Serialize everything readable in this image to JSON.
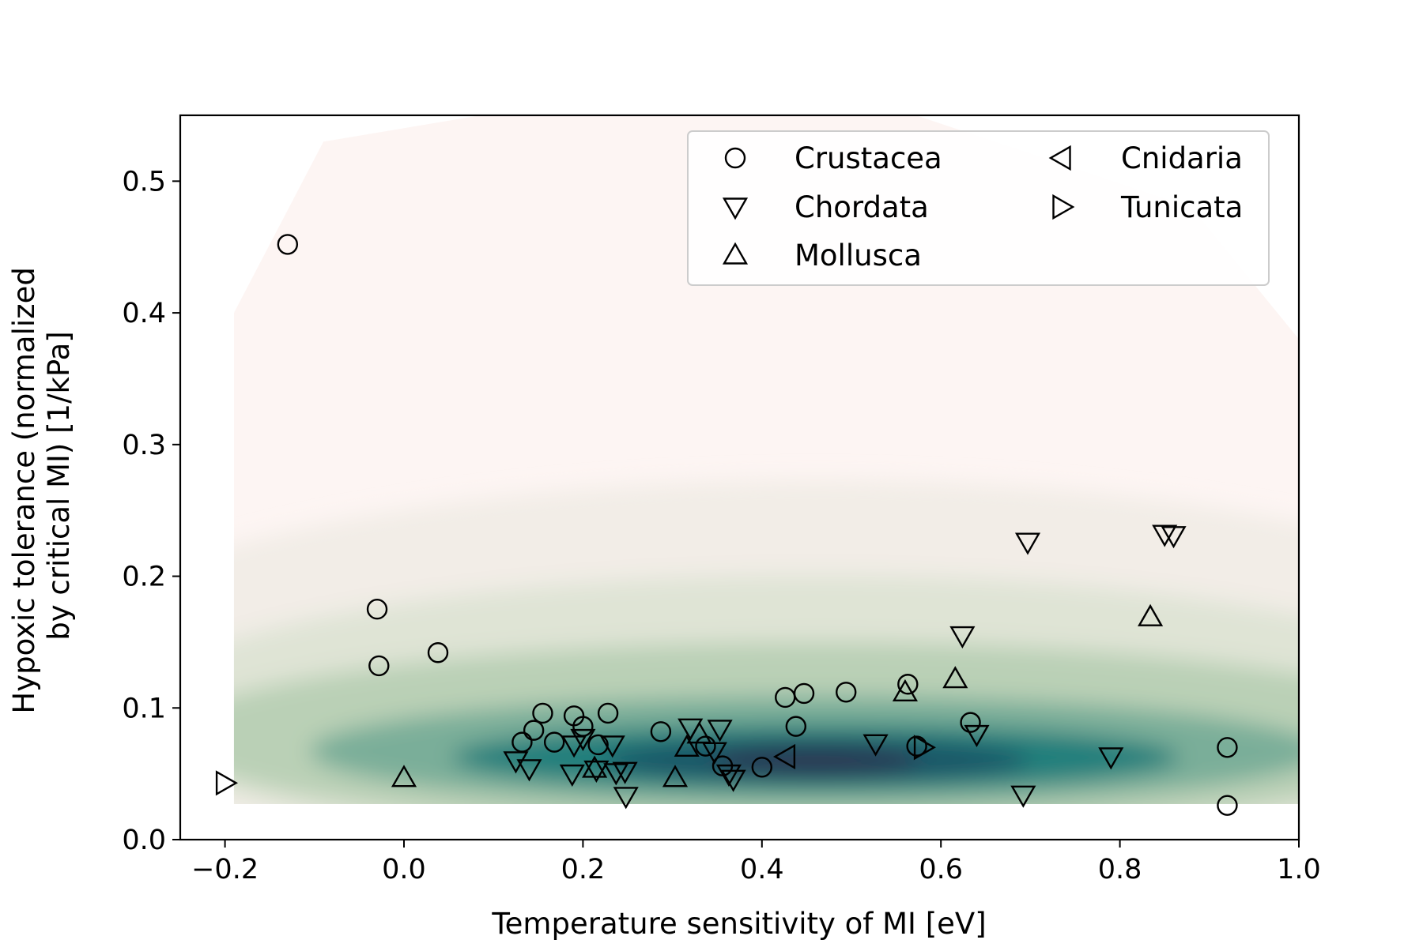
{
  "chart_data": {
    "type": "scatter",
    "title": "",
    "xlabel": "Temperature sensitivity of MI [eV]",
    "ylabel_lines": [
      "Hypoxic tolerance (normalized",
      "by critical MI) [1/kPa]"
    ],
    "xlim": [
      -0.25,
      1.0
    ],
    "ylim": [
      0.0,
      0.55
    ],
    "xticks": [
      -0.2,
      0.0,
      0.2,
      0.4,
      0.6,
      0.8,
      1.0
    ],
    "xtick_labels": [
      "−0.2",
      "0.0",
      "0.2",
      "0.4",
      "0.6",
      "0.8",
      "1.0"
    ],
    "yticks": [
      0.0,
      0.1,
      0.2,
      0.3,
      0.4,
      0.5
    ],
    "ytick_labels": [
      "0.0",
      "0.1",
      "0.2",
      "0.3",
      "0.4",
      "0.5"
    ],
    "grid": false,
    "legend_position": "top-right",
    "legend_columns": 2,
    "background": "kernel density estimate (green-blue center, fading to pale pink)",
    "density_colors": {
      "low": "#fdf5f3",
      "mid": "#b4ccb0",
      "high": "#1a7a78",
      "peak": "#2a3a55"
    },
    "series": [
      {
        "name": "Crustacea",
        "marker": "circle",
        "points": [
          [
            -0.13,
            0.452
          ],
          [
            -0.03,
            0.175
          ],
          [
            -0.028,
            0.132
          ],
          [
            0.038,
            0.142
          ],
          [
            0.132,
            0.074
          ],
          [
            0.145,
            0.083
          ],
          [
            0.155,
            0.096
          ],
          [
            0.168,
            0.074
          ],
          [
            0.19,
            0.094
          ],
          [
            0.2,
            0.086
          ],
          [
            0.217,
            0.072
          ],
          [
            0.228,
            0.096
          ],
          [
            0.287,
            0.082
          ],
          [
            0.337,
            0.071
          ],
          [
            0.356,
            0.056
          ],
          [
            0.4,
            0.055
          ],
          [
            0.426,
            0.108
          ],
          [
            0.438,
            0.086
          ],
          [
            0.447,
            0.111
          ],
          [
            0.494,
            0.112
          ],
          [
            0.563,
            0.118
          ],
          [
            0.573,
            0.071
          ],
          [
            0.633,
            0.089
          ],
          [
            0.92,
            0.07
          ],
          [
            0.92,
            0.026
          ]
        ]
      },
      {
        "name": "Chordata",
        "marker": "triangle-down",
        "points": [
          [
            0.125,
            0.06
          ],
          [
            0.14,
            0.054
          ],
          [
            0.188,
            0.05
          ],
          [
            0.19,
            0.072
          ],
          [
            0.2,
            0.077
          ],
          [
            0.215,
            0.053
          ],
          [
            0.233,
            0.072
          ],
          [
            0.237,
            0.051
          ],
          [
            0.247,
            0.052
          ],
          [
            0.248,
            0.033
          ],
          [
            0.32,
            0.085
          ],
          [
            0.347,
            0.067
          ],
          [
            0.353,
            0.084
          ],
          [
            0.363,
            0.05
          ],
          [
            0.368,
            0.046
          ],
          [
            0.527,
            0.073
          ],
          [
            0.624,
            0.155
          ],
          [
            0.64,
            0.08
          ],
          [
            0.692,
            0.034
          ],
          [
            0.697,
            0.226
          ],
          [
            0.79,
            0.063
          ],
          [
            0.85,
            0.232
          ],
          [
            0.86,
            0.231
          ]
        ]
      },
      {
        "name": "Mollusca",
        "marker": "triangle-up",
        "points": [
          [
            0.0,
            0.047
          ],
          [
            0.213,
            0.054
          ],
          [
            0.303,
            0.047
          ],
          [
            0.316,
            0.07
          ],
          [
            0.33,
            0.08
          ],
          [
            0.56,
            0.112
          ],
          [
            0.616,
            0.122
          ],
          [
            0.834,
            0.169
          ]
        ]
      },
      {
        "name": "Cnidaria",
        "marker": "triangle-left",
        "points": [
          [
            0.427,
            0.063
          ]
        ]
      },
      {
        "name": "Tunicata",
        "marker": "triangle-right",
        "points": [
          [
            -0.2,
            0.043
          ],
          [
            0.58,
            0.07
          ]
        ]
      }
    ]
  }
}
